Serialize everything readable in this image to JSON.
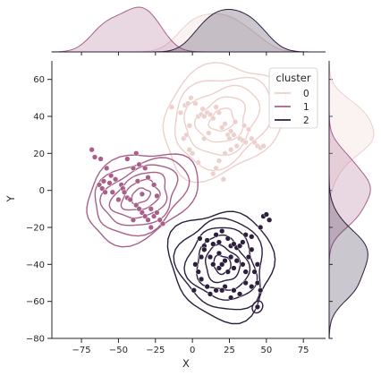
{
  "chart_data": {
    "type": "scatter",
    "subtype": "jointplot with kde contours and marginal kde",
    "xlabel": "X",
    "ylabel": "Y",
    "xlim": [
      -95,
      90
    ],
    "ylim": [
      -80,
      70
    ],
    "x_ticks": [
      -75,
      -50,
      -25,
      0,
      25,
      50,
      75
    ],
    "y_ticks": [
      -80,
      -60,
      -40,
      -20,
      0,
      20,
      40,
      60
    ],
    "grid": false,
    "legend": {
      "title": "cluster",
      "placement": "top-right"
    },
    "series": [
      {
        "name": "0",
        "color": "#ecd0cc",
        "center": [
          20,
          38
        ],
        "points": [
          [
            -14,
            45
          ],
          [
            -8,
            42
          ],
          [
            -5,
            46
          ],
          [
            -3,
            47
          ],
          [
            -1,
            50
          ],
          [
            2,
            47
          ],
          [
            4,
            40
          ],
          [
            6,
            41
          ],
          [
            8,
            40
          ],
          [
            10,
            42
          ],
          [
            12,
            41
          ],
          [
            14,
            39
          ],
          [
            7,
            44
          ],
          [
            16,
            45
          ],
          [
            18,
            42
          ],
          [
            22,
            36
          ],
          [
            24,
            30
          ],
          [
            26,
            32
          ],
          [
            28,
            30
          ],
          [
            29,
            37
          ],
          [
            32,
            28
          ],
          [
            34,
            27
          ],
          [
            36,
            26
          ],
          [
            38,
            33
          ],
          [
            40,
            28
          ],
          [
            42,
            26
          ],
          [
            44,
            24
          ],
          [
            46,
            23
          ],
          [
            48,
            24
          ],
          [
            30,
            24
          ],
          [
            26,
            22
          ],
          [
            22,
            20
          ],
          [
            18,
            16
          ],
          [
            16,
            12
          ],
          [
            21,
            6
          ],
          [
            14,
            9
          ],
          [
            -2,
            35
          ],
          [
            -4,
            30
          ],
          [
            -6,
            28
          ],
          [
            -2,
            22
          ],
          [
            0,
            20
          ],
          [
            4,
            15
          ],
          [
            8,
            28
          ],
          [
            11,
            31
          ],
          [
            35,
            35
          ],
          [
            25,
            28
          ],
          [
            20,
            34
          ]
        ]
      },
      {
        "name": "1",
        "color": "#a8608b",
        "center": [
          -35,
          -3
        ],
        "points": [
          [
            -68,
            22
          ],
          [
            -66,
            18
          ],
          [
            -62,
            17
          ],
          [
            -58,
            12
          ],
          [
            -63,
            3
          ],
          [
            -60,
            5
          ],
          [
            -56,
            4
          ],
          [
            -52,
            6
          ],
          [
            -48,
            3
          ],
          [
            -47,
            1
          ],
          [
            -61,
            1
          ],
          [
            -59,
            -1
          ],
          [
            -54,
            -1
          ],
          [
            -46,
            -1
          ],
          [
            -50,
            -5
          ],
          [
            -44,
            -4
          ],
          [
            -38,
            -8
          ],
          [
            -36,
            -10
          ],
          [
            -34,
            -12
          ],
          [
            -32,
            -14
          ],
          [
            -30,
            -16
          ],
          [
            -26,
            -14
          ],
          [
            -24,
            -12
          ],
          [
            -22,
            -16
          ],
          [
            -20,
            -18
          ],
          [
            -28,
            -10
          ],
          [
            -37,
            5
          ],
          [
            -40,
            12
          ],
          [
            -44,
            17
          ],
          [
            -38,
            20
          ],
          [
            -36,
            14
          ],
          [
            -32,
            12
          ],
          [
            -30,
            7
          ],
          [
            -26,
            3
          ],
          [
            -24,
            -3
          ],
          [
            -34,
            -2
          ],
          [
            -40,
            -16
          ],
          [
            -28,
            -20
          ],
          [
            -42,
            -5
          ],
          [
            -55,
            8
          ]
        ]
      },
      {
        "name": "2",
        "color": "#2d1e3e",
        "center": [
          20,
          -40
        ],
        "points": [
          [
            5,
            -26
          ],
          [
            8,
            -30
          ],
          [
            10,
            -27
          ],
          [
            14,
            -29
          ],
          [
            16,
            -24
          ],
          [
            18,
            -28
          ],
          [
            20,
            -22
          ],
          [
            24,
            -26
          ],
          [
            26,
            -30
          ],
          [
            28,
            -29
          ],
          [
            30,
            -31
          ],
          [
            32,
            -30
          ],
          [
            34,
            -28
          ],
          [
            36,
            -24
          ],
          [
            40,
            -25
          ],
          [
            46,
            -20
          ],
          [
            48,
            -14
          ],
          [
            50,
            -13
          ],
          [
            52,
            -16
          ],
          [
            44,
            -40
          ],
          [
            42,
            -44
          ],
          [
            44,
            -50
          ],
          [
            46,
            -54
          ],
          [
            40,
            -52
          ],
          [
            36,
            -50
          ],
          [
            32,
            -56
          ],
          [
            28,
            -54
          ],
          [
            26,
            -58
          ],
          [
            22,
            -52
          ],
          [
            20,
            -54
          ],
          [
            16,
            -54
          ],
          [
            12,
            -56
          ],
          [
            10,
            -52
          ],
          [
            6,
            -48
          ],
          [
            4,
            -44
          ],
          [
            2,
            -40
          ],
          [
            6,
            -36
          ],
          [
            8,
            -32
          ],
          [
            12,
            -36
          ],
          [
            14,
            -40
          ],
          [
            18,
            -42
          ],
          [
            20,
            -40
          ],
          [
            22,
            -38
          ],
          [
            24,
            -44
          ],
          [
            28,
            -42
          ],
          [
            30,
            -38
          ],
          [
            34,
            -40
          ],
          [
            36,
            -44
          ],
          [
            38,
            -36
          ],
          [
            40,
            -32
          ],
          [
            26,
            -36
          ],
          [
            18,
            -34
          ],
          [
            44,
            -63
          ],
          [
            1,
            -54
          ]
        ]
      }
    ]
  }
}
